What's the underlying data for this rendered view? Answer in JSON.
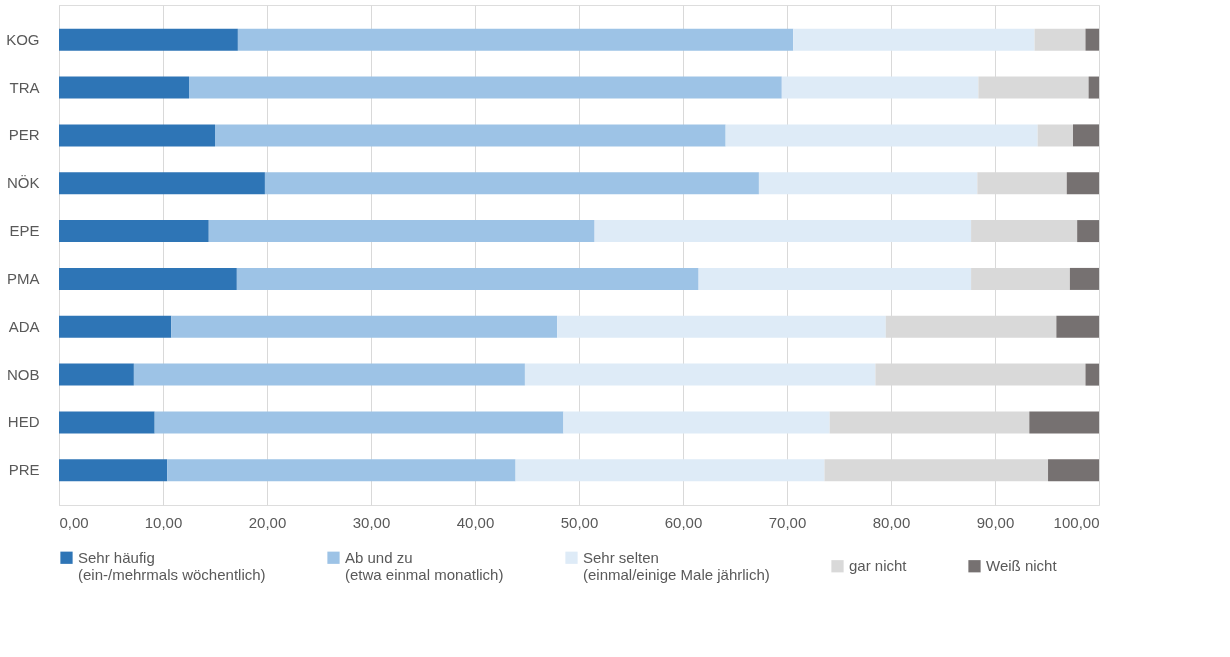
{
  "chart_data": {
    "type": "bar",
    "orientation": "horizontal",
    "stacked": true,
    "categories": [
      "KOG",
      "TRA",
      "PER",
      "NÖK",
      "EPE",
      "PMA",
      "ADA",
      "NOB",
      "HED",
      "PRE"
    ],
    "series": [
      {
        "name": "Sehr häufig\n(ein-/mehrmals wöchentlich)",
        "color": "#2e75b6",
        "values": [
          17.2,
          12.5,
          15.0,
          19.8,
          14.4,
          17.1,
          10.8,
          7.2,
          9.2,
          10.4
        ]
      },
      {
        "name": "Ab und zu\n(etwa einmal monatlich)",
        "color": "#9dc3e6",
        "values": [
          53.4,
          57.0,
          49.1,
          47.5,
          37.1,
          44.4,
          37.1,
          37.6,
          39.3,
          33.5
        ]
      },
      {
        "name": "Sehr selten\n(einmal/einige Male jährlich)",
        "color": "#deebf7",
        "values": [
          23.2,
          18.9,
          30.0,
          21.0,
          36.2,
          26.2,
          31.6,
          33.7,
          25.6,
          29.7
        ]
      },
      {
        "name": "gar nicht",
        "color": "#d9d9d9",
        "values": [
          4.9,
          10.6,
          3.4,
          8.6,
          10.2,
          9.5,
          16.4,
          20.2,
          19.2,
          21.5
        ]
      },
      {
        "name": "Weiß nicht",
        "color": "#767171",
        "values": [
          1.3,
          1.0,
          2.5,
          3.1,
          2.1,
          2.8,
          4.1,
          1.3,
          6.7,
          4.9
        ]
      }
    ],
    "xlim": [
      0,
      100
    ],
    "xticks": [
      {
        "value": 0,
        "label": "0,00"
      },
      {
        "value": 10,
        "label": "10,00"
      },
      {
        "value": 20,
        "label": "20,00"
      },
      {
        "value": 30,
        "label": "30,00"
      },
      {
        "value": 40,
        "label": "40,00"
      },
      {
        "value": 50,
        "label": "50,00"
      },
      {
        "value": 60,
        "label": "60,00"
      },
      {
        "value": 70,
        "label": "70,00"
      },
      {
        "value": 80,
        "label": "80,00"
      },
      {
        "value": 90,
        "label": "90,00"
      },
      {
        "value": 100,
        "label": "100,00"
      }
    ],
    "grid": "x",
    "legend": "bottom"
  }
}
